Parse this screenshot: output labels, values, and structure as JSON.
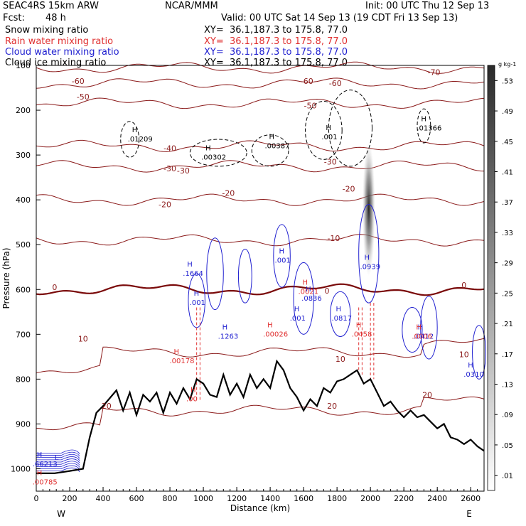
{
  "header": {
    "model": "SEAC4RS 15km ARW",
    "org": "NCAR/MMM",
    "init": "Init: 00 UTC Thu 12 Sep 13",
    "fcst_label": "Fcst:",
    "fcst_value": "48 h",
    "valid": "Valid: 00 UTC Sat 14 Sep 13 (19 CDT Fri 13 Sep 13)"
  },
  "fields": [
    {
      "name": "Snow mixing ratio",
      "xy": "XY=  36.1,187.3 to 175.8, 77.0",
      "color": "#000000"
    },
    {
      "name": "Rain water mixing ratio",
      "xy": "XY=  36.1,187.3 to 175.8, 77.0",
      "color": "#e03030"
    },
    {
      "name": "Cloud water mixing ratio",
      "xy": "XY=  36.1,187.3 to 175.8, 77.0",
      "color": "#2020d0"
    },
    {
      "name": "Cloud ice mixing ratio",
      "xy": "XY=  36.1,187.3 to 175.8, 77.0",
      "color": "#000000"
    }
  ],
  "chart_data": {
    "type": "cross-section",
    "xlabel": "Distance (km)",
    "ylabel": "Pressure (hPa)",
    "xlim": [
      0,
      2680
    ],
    "ylim": [
      1050,
      100
    ],
    "x_ticks": [
      0,
      200,
      400,
      600,
      800,
      1000,
      1200,
      1400,
      1600,
      1800,
      2000,
      2200,
      2400,
      2600
    ],
    "y_ticks": [
      100,
      200,
      300,
      400,
      500,
      600,
      700,
      800,
      900,
      1000
    ],
    "left_end": "W",
    "right_end": "E",
    "colorbar": {
      "units": "g kg-1",
      "labels": [
        ".01",
        ".05",
        ".09",
        ".13",
        ".17",
        ".21",
        ".25",
        ".29",
        ".33",
        ".37",
        ".41",
        ".45",
        ".49",
        ".53"
      ]
    },
    "temperature_isotherms_C": [
      {
        "value": -70,
        "labels_at_x": [
          [
            2380,
            115
          ]
        ]
      },
      {
        "value": -60,
        "labels_at_x": [
          [
            250,
            135
          ],
          [
            1620,
            135
          ],
          [
            1790,
            140
          ]
        ]
      },
      {
        "value": -50,
        "labels_at_x": [
          [
            280,
            170
          ],
          [
            1640,
            190
          ]
        ]
      },
      {
        "value": -40,
        "labels_at_x": [
          [
            800,
            285
          ]
        ]
      },
      {
        "value": -30,
        "labels_at_x": [
          [
            800,
            330
          ],
          [
            880,
            335
          ],
          [
            1760,
            315
          ]
        ]
      },
      {
        "value": -20,
        "labels_at_x": [
          [
            770,
            410
          ],
          [
            1150,
            385
          ],
          [
            1870,
            375
          ]
        ]
      },
      {
        "value": -10,
        "labels_at_x": [
          [
            1780,
            485
          ]
        ]
      },
      {
        "value": 0,
        "labels_at_x": [
          [
            110,
            595
          ],
          [
            1740,
            603
          ],
          [
            2560,
            590
          ]
        ]
      },
      {
        "value": 10,
        "labels_at_x": [
          [
            280,
            710
          ],
          [
            1820,
            755
          ],
          [
            2560,
            745
          ]
        ]
      },
      {
        "value": 20,
        "labels_at_x": [
          [
            420,
            860
          ],
          [
            1770,
            860
          ],
          [
            2340,
            835
          ]
        ]
      }
    ],
    "terrain_surface_hPa": {
      "x": [
        0,
        110,
        200,
        280,
        320,
        360,
        400,
        480,
        520,
        560,
        600,
        640,
        680,
        720,
        760,
        800,
        840,
        880,
        920,
        960,
        1000,
        1040,
        1080,
        1120,
        1160,
        1200,
        1240,
        1280,
        1320,
        1360,
        1400,
        1440,
        1480,
        1520,
        1560,
        1600,
        1640,
        1680,
        1720,
        1760,
        1800,
        1840,
        1880,
        1920,
        1960,
        2000,
        2040,
        2080,
        2120,
        2160,
        2200,
        2240,
        2280,
        2320,
        2360,
        2400,
        2440,
        2480,
        2520,
        2560,
        2600,
        2640,
        2680
      ],
      "p": [
        1010,
        1010,
        1005,
        1000,
        930,
        875,
        860,
        825,
        870,
        830,
        880,
        835,
        850,
        830,
        875,
        830,
        855,
        820,
        845,
        800,
        810,
        835,
        840,
        790,
        835,
        810,
        840,
        790,
        820,
        800,
        820,
        760,
        780,
        820,
        840,
        870,
        845,
        860,
        820,
        830,
        805,
        800,
        790,
        780,
        810,
        800,
        830,
        860,
        850,
        870,
        885,
        870,
        885,
        880,
        895,
        910,
        900,
        930,
        935,
        945,
        935,
        950,
        960
      ]
    },
    "maxima_labels": [
      {
        "field": "cloud ice",
        "value": ".01209",
        "x": 590,
        "p": 265
      },
      {
        "field": "cloud ice",
        "value": ".00302",
        "x": 1030,
        "p": 305
      },
      {
        "field": "cloud ice",
        "value": ".00387",
        "x": 1410,
        "p": 280
      },
      {
        "field": "cloud ice",
        "value": ".001",
        "x": 1750,
        "p": 260
      },
      {
        "field": "cloud ice",
        "value": ".01366",
        "x": 2320,
        "p": 240
      },
      {
        "field": "cloud water",
        "value": ".1664",
        "x": 920,
        "p": 565
      },
      {
        "field": "cloud water",
        "value": ".001",
        "x": 960,
        "p": 630
      },
      {
        "field": "cloud water",
        "value": ".1263",
        "x": 1130,
        "p": 705
      },
      {
        "field": "cloud water",
        "value": ".001",
        "x": 1470,
        "p": 535
      },
      {
        "field": "cloud water",
        "value": ".0836",
        "x": 1630,
        "p": 620
      },
      {
        "field": "cloud water",
        "value": ".001",
        "x": 1560,
        "p": 665
      },
      {
        "field": "cloud water",
        "value": ".0817",
        "x": 1810,
        "p": 665
      },
      {
        "field": "cloud water",
        "value": ".0939",
        "x": 1980,
        "p": 550
      },
      {
        "field": "cloud water",
        "value": ".0412",
        "x": 2300,
        "p": 705
      },
      {
        "field": "cloud water",
        "value": ".0310",
        "x": 2600,
        "p": 790
      },
      {
        "field": "rain water",
        "value": ".0021",
        "x": 1610,
        "p": 605
      },
      {
        "field": "rain water",
        "value": ".00178",
        "x": 840,
        "p": 760
      },
      {
        "field": "rain water",
        "value": ".00026",
        "x": 1400,
        "p": 700
      },
      {
        "field": "rain water",
        "value": ".0458",
        "x": 1930,
        "p": 700
      },
      {
        "field": "rain water",
        "value": ".00",
        "x": 940,
        "p": 845
      },
      {
        "field": "rain water",
        "value": ".0006",
        "x": 2290,
        "p": 705
      },
      {
        "field": "cloud water",
        "value": ".66213",
        "x": 20,
        "p": 990
      },
      {
        "field": "rain water",
        "value": ".00785",
        "x": 20,
        "p": 1030
      }
    ],
    "marker_labels": [
      "H",
      "L"
    ]
  }
}
